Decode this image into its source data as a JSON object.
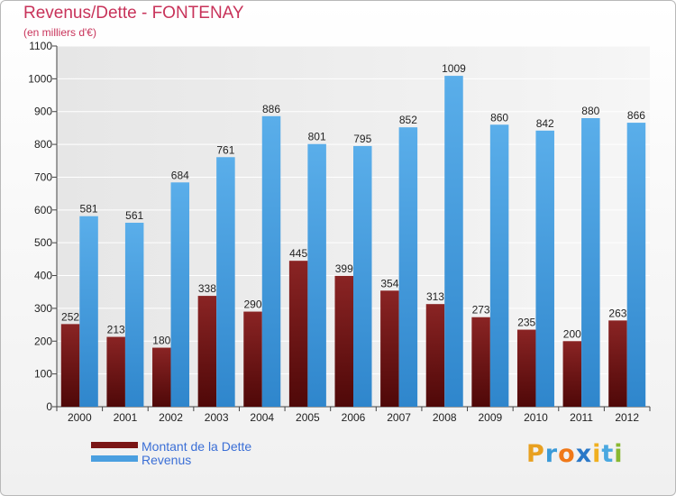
{
  "title": "Revenus/Dette - FONTENAY",
  "subtitle": "(en milliers d'€)",
  "colors": {
    "dette": "#7a1515",
    "revenus": "#4a9fe0",
    "title": "#c8335a",
    "legend_text": "#3b6fd6"
  },
  "legend": {
    "dette_label": "Montant de la Dette",
    "revenus_label": "Revenus"
  },
  "logo": {
    "letters": [
      "P",
      "r",
      "o",
      "x",
      "i",
      "t",
      "i"
    ],
    "colors": [
      "#e8a020",
      "#3a9ad8",
      "#f07818",
      "#2a78c8",
      "#f0b020",
      "#4aa8e0",
      "#88b830"
    ]
  },
  "chart_data": {
    "type": "bar",
    "title": "Revenus/Dette - FONTENAY",
    "subtitle": "(en milliers d'€)",
    "categories": [
      "2000",
      "2001",
      "2002",
      "2003",
      "2004",
      "2005",
      "2006",
      "2007",
      "2008",
      "2009",
      "2010",
      "2011",
      "2012"
    ],
    "series": [
      {
        "name": "Montant de la Dette",
        "values": [
          252,
          213,
          180,
          338,
          290,
          445,
          399,
          354,
          313,
          273,
          235,
          200,
          263
        ]
      },
      {
        "name": "Revenus",
        "values": [
          581,
          561,
          684,
          761,
          886,
          801,
          795,
          852,
          1009,
          860,
          842,
          880,
          866
        ]
      }
    ],
    "ylim": [
      0,
      1100
    ],
    "yticks": [
      0,
      100,
      200,
      300,
      400,
      500,
      600,
      700,
      800,
      900,
      1000,
      1100
    ],
    "grid": true,
    "legend_position": "bottom-left"
  }
}
